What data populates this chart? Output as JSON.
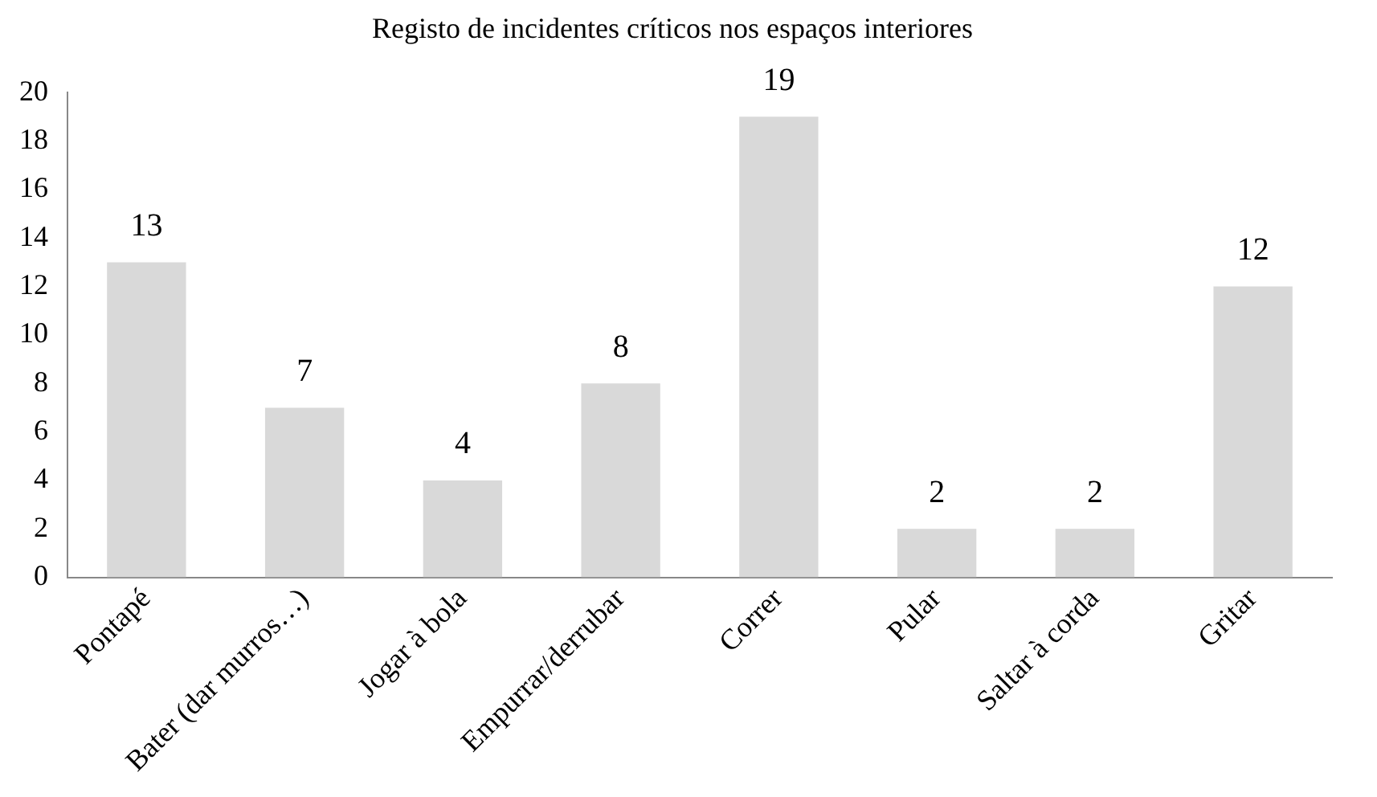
{
  "chart_data": {
    "type": "bar",
    "title": "Registo de incidentes críticos nos espaços interiores",
    "categories": [
      "Pontapé",
      "Bater (dar murros…)",
      "Jogar à bola",
      "Empurrar/derrubar",
      "Correr",
      "Pular",
      "Saltar à corda",
      "Gritar"
    ],
    "values": [
      13,
      7,
      4,
      8,
      19,
      2,
      2,
      12
    ],
    "color": "#d9d9d9",
    "ylim": [
      0,
      20
    ],
    "yticks": [
      0,
      2,
      4,
      6,
      8,
      10,
      12,
      14,
      16,
      18,
      20
    ],
    "grid": false,
    "legend": false,
    "data_labels": true
  }
}
